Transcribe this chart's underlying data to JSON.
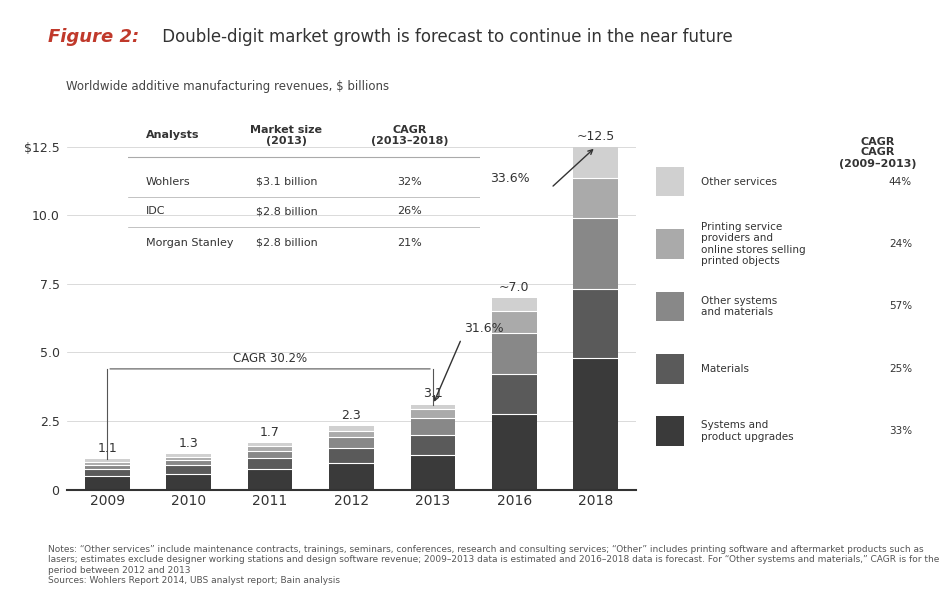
{
  "title_italic": "Figure 2:",
  "title_normal": " Double-digit market growth is forecast to continue in the near future",
  "subtitle": "Worldwide additive manufacturing revenues, $ billions",
  "years": [
    "2009",
    "2010",
    "2011",
    "2012",
    "2013",
    "2016",
    "2018"
  ],
  "bar_totals": [
    1.1,
    1.3,
    1.7,
    2.3,
    3.1,
    7.0,
    12.5
  ],
  "bar_total_labels": [
    "1.1",
    "1.3",
    "1.7",
    "2.3",
    "3.1",
    "~7.0",
    "~12.5"
  ],
  "segments": {
    "Systems and product upgrades": [
      0.5,
      0.58,
      0.75,
      0.95,
      1.25,
      2.75,
      4.8
    ],
    "Materials": [
      0.25,
      0.3,
      0.4,
      0.55,
      0.75,
      1.45,
      2.5
    ],
    "Other systems and materials": [
      0.15,
      0.18,
      0.25,
      0.4,
      0.6,
      1.5,
      2.6
    ],
    "Printing service providers": [
      0.12,
      0.14,
      0.18,
      0.25,
      0.35,
      0.8,
      1.45
    ],
    "Other services": [
      0.08,
      0.1,
      0.12,
      0.15,
      0.15,
      0.5,
      1.15
    ]
  },
  "segment_colors": {
    "Systems and product upgrades": "#3a3a3a",
    "Materials": "#5a5a5a",
    "Other systems and materials": "#888888",
    "Printing service providers": "#aaaaaa",
    "Other services": "#d0d0d0"
  },
  "legend_labels": [
    "Other services",
    "Printing service\nproviders and\nonline stores selling\nprinted objects",
    "Other systems\nand materials",
    "Materials",
    "Systems and\nproduct upgrades"
  ],
  "legend_colors": [
    "#d0d0d0",
    "#aaaaaa",
    "#888888",
    "#5a5a5a",
    "#3a3a3a"
  ],
  "legend_cagr": [
    "44%",
    "24%",
    "57%",
    "25%",
    "33%"
  ],
  "cagr_label": "CAGR\n(2009–2013)",
  "cagr_bracket": "CAGR 30.2%",
  "pct_2013": "31.6%",
  "pct_2016": "33.6%",
  "ylim": [
    0,
    13.5
  ],
  "yticks": [
    0,
    2.5,
    5.0,
    7.5,
    10.0,
    12.5
  ],
  "ytick_labels": [
    "0",
    "2.5",
    "5.0",
    "7.5",
    "10.0",
    "$12.5"
  ],
  "background_color": "#ffffff",
  "table_analysts": [
    "Wohlers",
    "IDC",
    "Morgan Stanley"
  ],
  "table_market": [
    "$3.1 billion",
    "$2.8 billion",
    "$2.8 billion"
  ],
  "table_cagr": [
    "32%",
    "26%",
    "21%"
  ],
  "notes": "Notes: “Other services” include maintenance contracts, trainings, seminars, conferences, research and consulting services; “Other” includes printing software and aftermarket products such as lasers; estimates exclude designer working stations and design software revenue; 2009–2013 data is estimated and 2016–2018 data is forecast. For “Other systems and materials,” CAGR is for the period between 2012 and 2013",
  "sources": "Sources: Wohlers Report 2014, UBS analyst report; Bain analysis"
}
